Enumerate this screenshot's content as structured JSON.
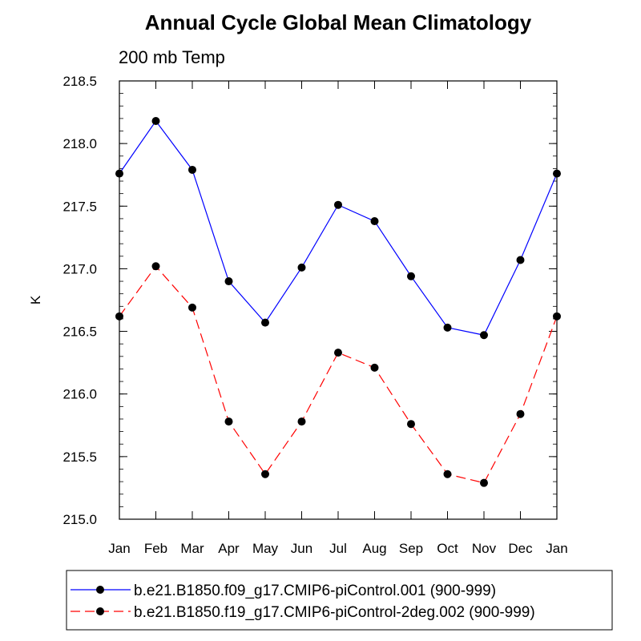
{
  "chart_data": {
    "type": "line",
    "title": "Annual Cycle Global Mean Climatology",
    "subtitle": "200 mb Temp",
    "xlabel": "",
    "ylabel": "K",
    "categories": [
      "Jan",
      "Feb",
      "Mar",
      "Apr",
      "May",
      "Jun",
      "Jul",
      "Aug",
      "Sep",
      "Oct",
      "Nov",
      "Dec",
      "Jan"
    ],
    "ylim": [
      215.0,
      218.5
    ],
    "yticks": [
      215.0,
      215.5,
      216.0,
      216.5,
      217.0,
      217.5,
      218.0,
      218.5
    ],
    "ytick_labels": [
      "215.0",
      "215.5",
      "216.0",
      "216.5",
      "217.0",
      "217.5",
      "218.0",
      "218.5"
    ],
    "grid": false,
    "legend_position": "bottom",
    "series": [
      {
        "name": "b.e21.B1850.f09_g17.CMIP6-piControl.001 (900-999)",
        "color": "#0000ff",
        "dash": "solid",
        "marker_color": "#000000",
        "values": [
          217.76,
          218.18,
          217.79,
          216.9,
          216.57,
          217.01,
          217.51,
          217.38,
          216.94,
          216.53,
          216.47,
          217.07,
          217.76
        ]
      },
      {
        "name": "b.e21.B1850.f19_g17.CMIP6-piControl-2deg.002 (900-999)",
        "color": "#ff0000",
        "dash": "dashed",
        "marker_color": "#000000",
        "values": [
          216.62,
          217.02,
          216.69,
          215.78,
          215.36,
          215.78,
          216.33,
          216.21,
          215.76,
          215.36,
          215.29,
          215.84,
          216.62
        ]
      }
    ]
  }
}
